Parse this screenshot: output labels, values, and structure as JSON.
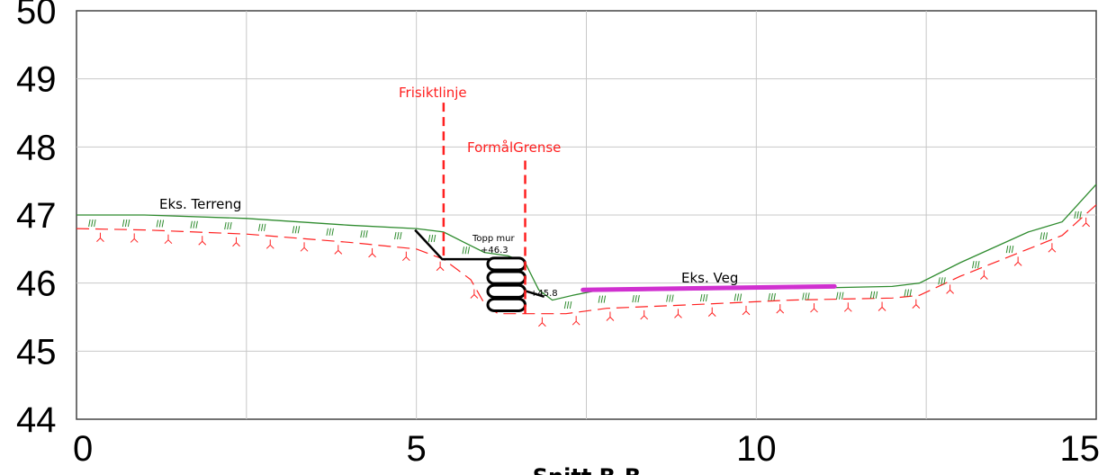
{
  "chart_data": {
    "type": "line",
    "title": "Snitt B-B",
    "xlim": [
      0,
      15
    ],
    "ylim": [
      44,
      50
    ],
    "x_ticks": [
      "0",
      "5",
      "10",
      "15"
    ],
    "y_ticks": [
      "44",
      "45",
      "46",
      "47",
      "48",
      "49",
      "50"
    ],
    "grid": true,
    "series": [
      {
        "name": "Eks. Terreng",
        "color": "#2e8b2e",
        "points": [
          [
            0,
            47.0
          ],
          [
            1.0,
            47.0
          ],
          [
            2.5,
            46.95
          ],
          [
            4.0,
            46.85
          ],
          [
            5.0,
            46.8
          ],
          [
            5.4,
            46.75
          ],
          [
            5.7,
            46.6
          ],
          [
            6.0,
            46.45
          ],
          [
            6.35,
            46.4
          ],
          [
            6.6,
            46.3
          ],
          [
            6.8,
            45.9
          ],
          [
            7.0,
            45.75
          ],
          [
            7.3,
            45.82
          ],
          [
            7.6,
            45.88
          ],
          [
            9.0,
            45.9
          ],
          [
            10.5,
            45.92
          ],
          [
            12.0,
            45.95
          ],
          [
            12.4,
            46.0
          ],
          [
            13.0,
            46.3
          ],
          [
            14.0,
            46.75
          ],
          [
            14.5,
            46.9
          ],
          [
            15.0,
            47.45
          ]
        ]
      },
      {
        "name": "",
        "color": "#ff2020",
        "points": [
          [
            0,
            46.8
          ],
          [
            1.0,
            46.78
          ],
          [
            2.5,
            46.72
          ],
          [
            4.0,
            46.6
          ],
          [
            5.0,
            46.5
          ],
          [
            5.4,
            46.35
          ],
          [
            5.8,
            46.05
          ],
          [
            6.0,
            45.7
          ],
          [
            6.2,
            45.55
          ],
          [
            6.7,
            45.55
          ],
          [
            7.2,
            45.55
          ],
          [
            7.8,
            45.63
          ],
          [
            9.0,
            45.68
          ],
          [
            10.5,
            45.75
          ],
          [
            12.0,
            45.78
          ],
          [
            12.4,
            45.82
          ],
          [
            13.0,
            46.1
          ],
          [
            14.0,
            46.5
          ],
          [
            14.5,
            46.7
          ],
          [
            15.0,
            47.15
          ]
        ]
      },
      {
        "name": "Eks. Veg",
        "color": "#d030d0",
        "points": [
          [
            7.45,
            45.9
          ],
          [
            11.15,
            45.95
          ]
        ]
      }
    ],
    "vertical_lines": [
      {
        "label": "Frisiktlinje",
        "x": 5.4,
        "y_from": 46.35,
        "y_to": 48.65,
        "color": "#ff2020"
      },
      {
        "label": "FormålGrense",
        "x": 6.6,
        "y_from": 45.5,
        "y_to": 47.8,
        "color": "#ff2020"
      }
    ],
    "annotations": [
      {
        "text": "Eks. Terreng",
        "x": 1.1,
        "y": 47.13
      },
      {
        "text": "Eks. Veg",
        "x": 8.9,
        "y": 46.05
      },
      {
        "text": "Topp mur",
        "x": 5.85,
        "y": 46.67
      },
      {
        "text": "+46.3",
        "x": 5.95,
        "y": 46.5
      },
      {
        "text": "+45.8",
        "x": 6.65,
        "y": 45.82
      },
      {
        "text": "Snitt B-B",
        "x": 6.5,
        "y": 43.1
      }
    ],
    "wall": {
      "label": "Topp mur",
      "top": 46.3,
      "foot": 45.8,
      "blocks": 4
    }
  }
}
